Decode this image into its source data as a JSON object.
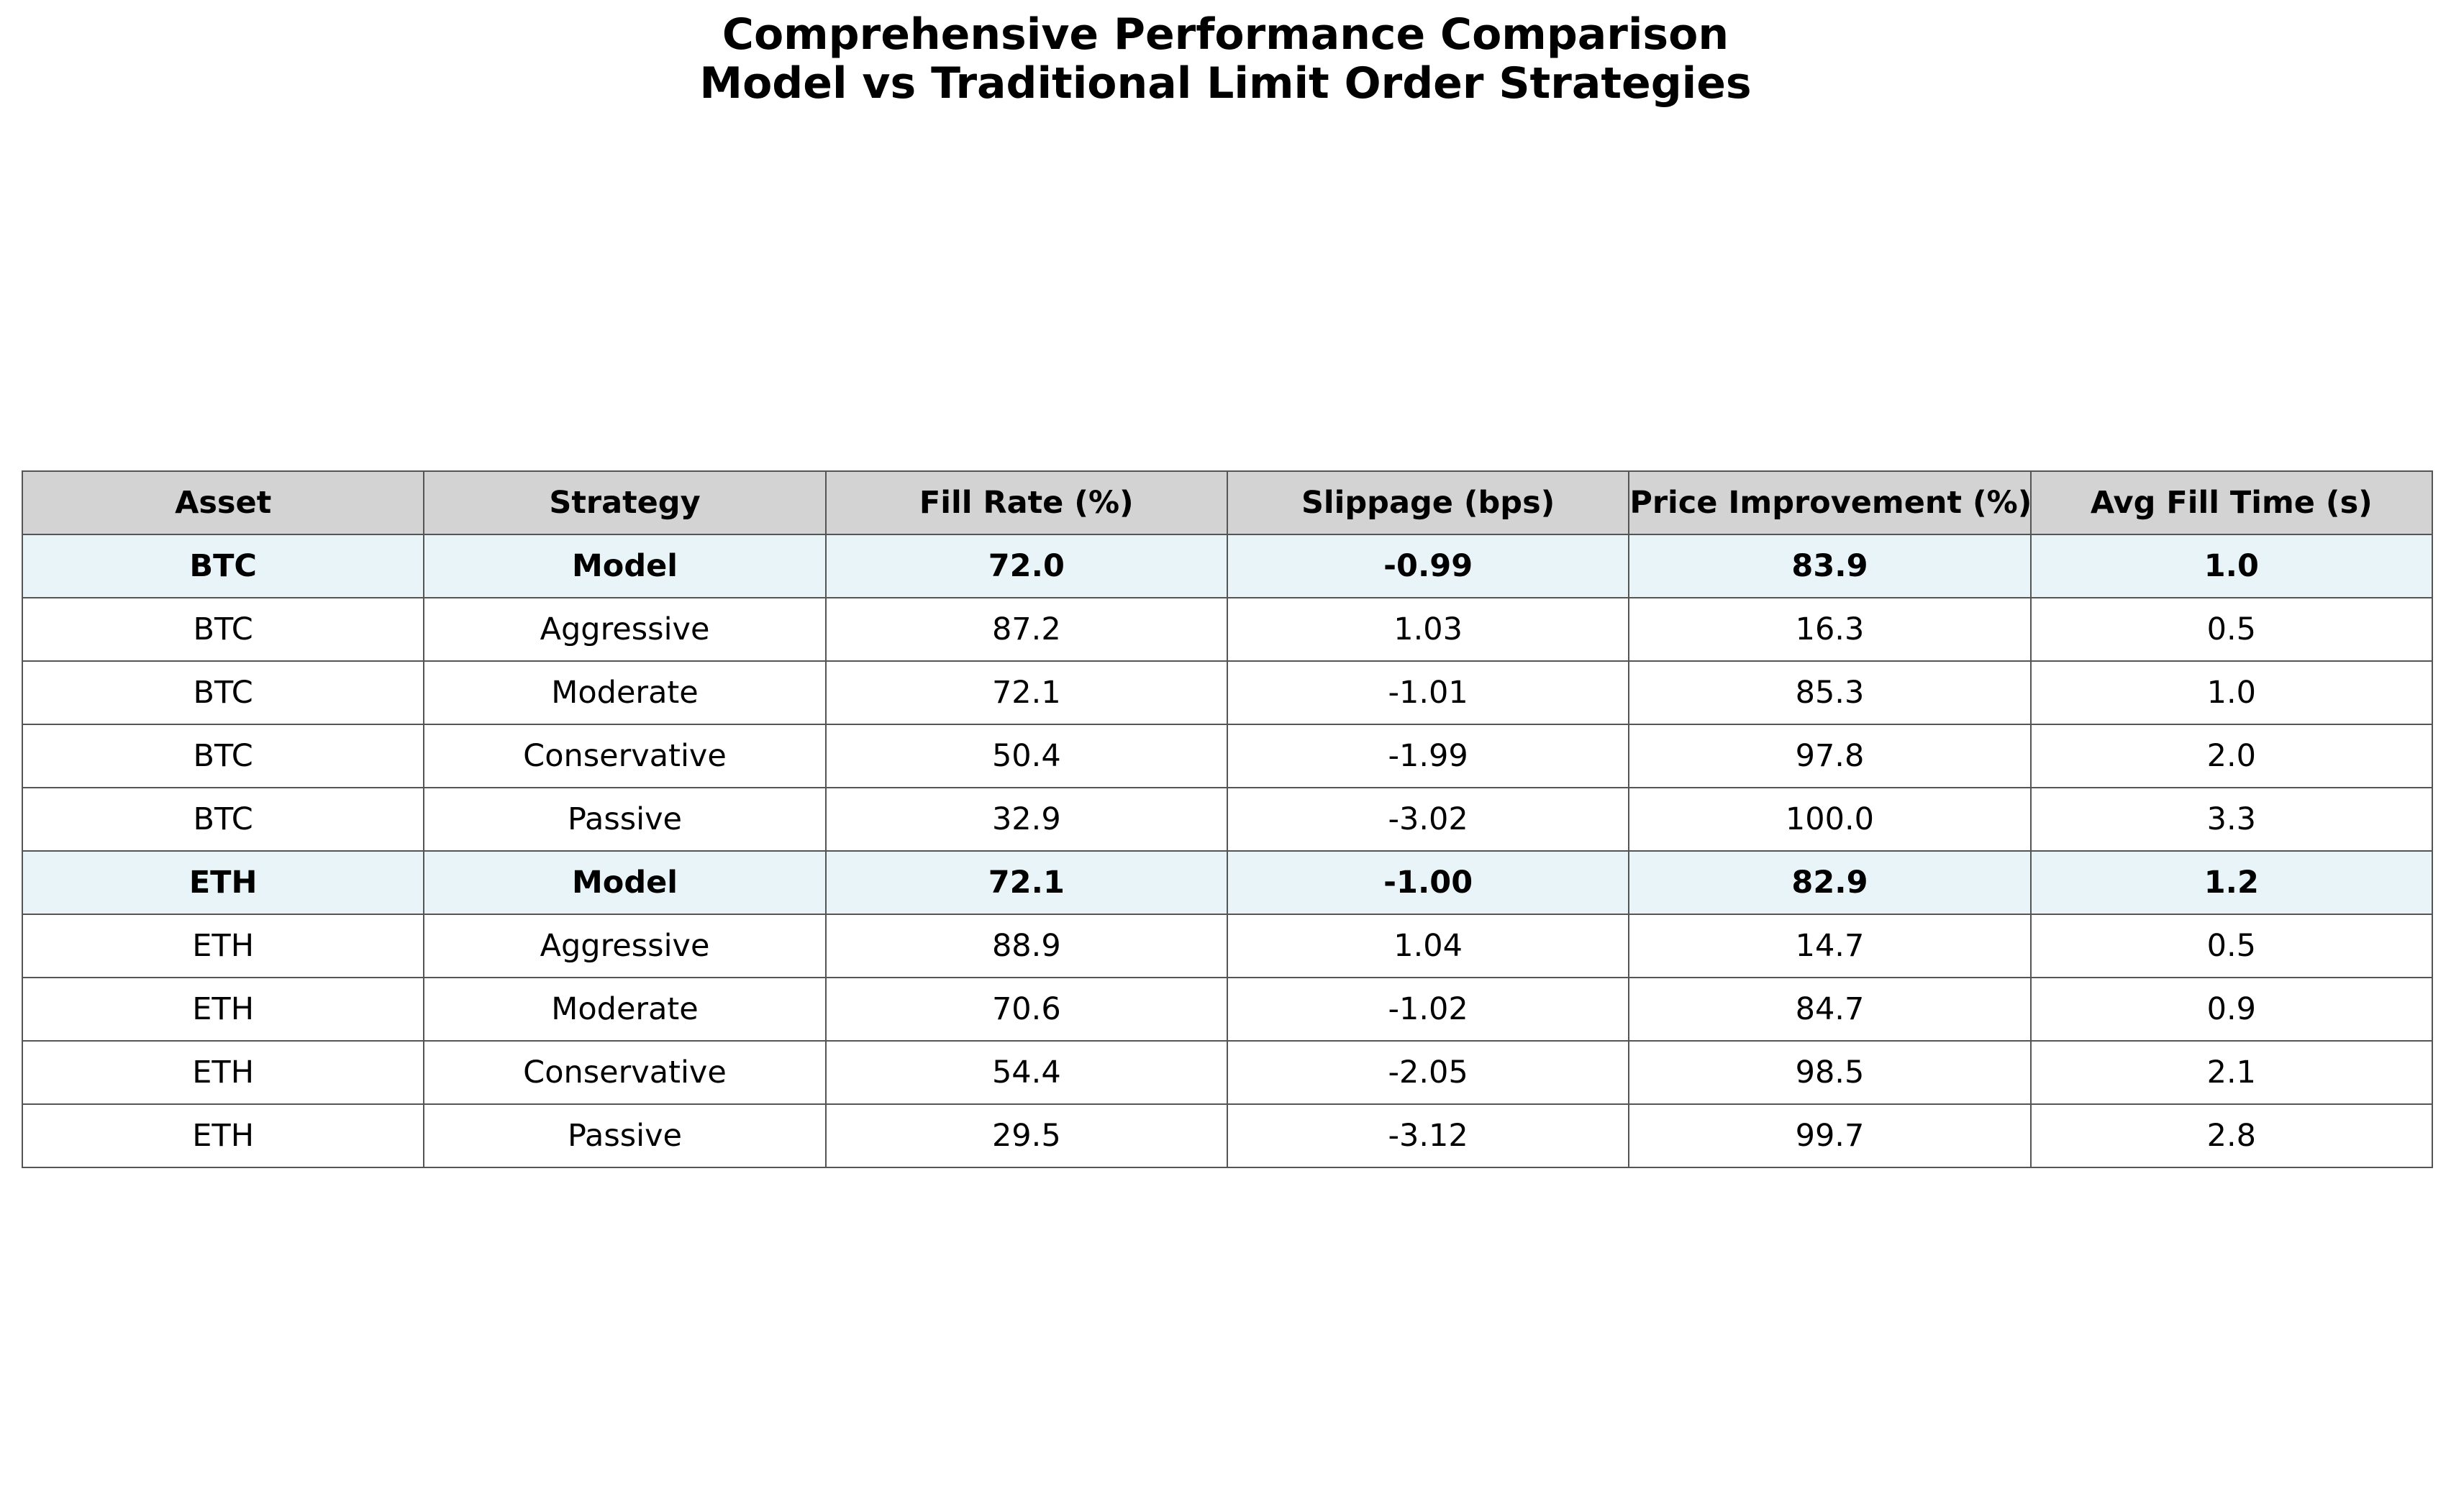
{
  "title": {
    "line1": "Comprehensive Performance Comparison",
    "line2": "Model vs Traditional Limit Order Strategies"
  },
  "colors": {
    "header_bg": "#d3d3d3",
    "model_row_bg": "#e8f4f8",
    "row_bg": "#ffffff",
    "border": "#555555"
  },
  "chart_data": {
    "type": "table",
    "columns": [
      "Asset",
      "Strategy",
      "Fill Rate (%)",
      "Slippage (bps)",
      "Price Improvement (%)",
      "Avg Fill Time (s)"
    ],
    "rows": [
      {
        "cells": [
          "BTC",
          "Model",
          "72.0",
          "-0.99",
          "83.9",
          "1.0"
        ],
        "highlight": true
      },
      {
        "cells": [
          "BTC",
          "Aggressive",
          "87.2",
          "1.03",
          "16.3",
          "0.5"
        ],
        "highlight": false
      },
      {
        "cells": [
          "BTC",
          "Moderate",
          "72.1",
          "-1.01",
          "85.3",
          "1.0"
        ],
        "highlight": false
      },
      {
        "cells": [
          "BTC",
          "Conservative",
          "50.4",
          "-1.99",
          "97.8",
          "2.0"
        ],
        "highlight": false
      },
      {
        "cells": [
          "BTC",
          "Passive",
          "32.9",
          "-3.02",
          "100.0",
          "3.3"
        ],
        "highlight": false
      },
      {
        "cells": [
          "ETH",
          "Model",
          "72.1",
          "-1.00",
          "82.9",
          "1.2"
        ],
        "highlight": true
      },
      {
        "cells": [
          "ETH",
          "Aggressive",
          "88.9",
          "1.04",
          "14.7",
          "0.5"
        ],
        "highlight": false
      },
      {
        "cells": [
          "ETH",
          "Moderate",
          "70.6",
          "-1.02",
          "84.7",
          "0.9"
        ],
        "highlight": false
      },
      {
        "cells": [
          "ETH",
          "Conservative",
          "54.4",
          "-2.05",
          "98.5",
          "2.1"
        ],
        "highlight": false
      },
      {
        "cells": [
          "ETH",
          "Passive",
          "29.5",
          "-3.12",
          "99.7",
          "2.8"
        ],
        "highlight": false
      }
    ]
  }
}
